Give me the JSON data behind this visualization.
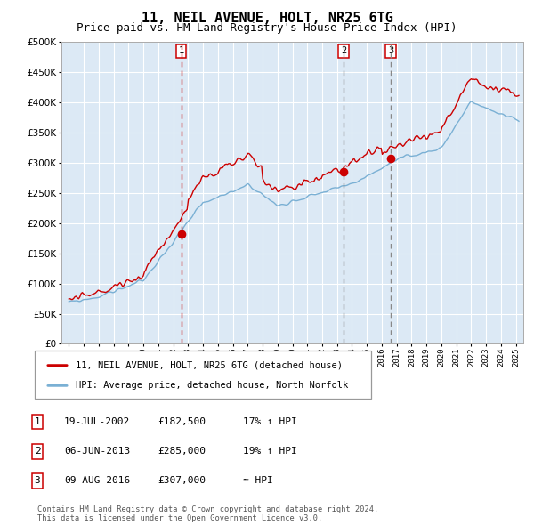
{
  "title": "11, NEIL AVENUE, HOLT, NR25 6TG",
  "subtitle": "Price paid vs. HM Land Registry's House Price Index (HPI)",
  "title_fontsize": 11,
  "subtitle_fontsize": 9,
  "plot_bg_color": "#dce9f5",
  "grid_color": "#ffffff",
  "line1_color": "#cc0000",
  "line2_color": "#7ab0d4",
  "sale_marker_color": "#cc0000",
  "sale1_date_num": 2002.54,
  "sale1_price": 182500,
  "sale1_label": "1",
  "sale1_date_str": "19-JUL-2002",
  "sale1_price_str": "£182,500",
  "sale1_hpi_str": "17% ↑ HPI",
  "sale2_date_num": 2013.43,
  "sale2_price": 285000,
  "sale2_label": "2",
  "sale2_date_str": "06-JUN-2013",
  "sale2_price_str": "£285,000",
  "sale2_hpi_str": "19% ↑ HPI",
  "sale3_date_num": 2016.6,
  "sale3_price": 307000,
  "sale3_label": "3",
  "sale3_date_str": "09-AUG-2016",
  "sale3_price_str": "£307,000",
  "sale3_hpi_str": "≈ HPI",
  "vline1_color": "#cc0000",
  "vline2_color": "#888888",
  "vline3_color": "#888888",
  "ylim": [
    0,
    500000
  ],
  "xlim_start": 1994.5,
  "xlim_end": 2025.5,
  "yticks": [
    0,
    50000,
    100000,
    150000,
    200000,
    250000,
    300000,
    350000,
    400000,
    450000,
    500000
  ],
  "ytick_labels": [
    "£0",
    "£50K",
    "£100K",
    "£150K",
    "£200K",
    "£250K",
    "£300K",
    "£350K",
    "£400K",
    "£450K",
    "£500K"
  ],
  "legend1_label": "11, NEIL AVENUE, HOLT, NR25 6TG (detached house)",
  "legend2_label": "HPI: Average price, detached house, North Norfolk",
  "footer_text": "Contains HM Land Registry data © Crown copyright and database right 2024.\nThis data is licensed under the Open Government Licence v3.0.",
  "box_color": "#cc0000"
}
